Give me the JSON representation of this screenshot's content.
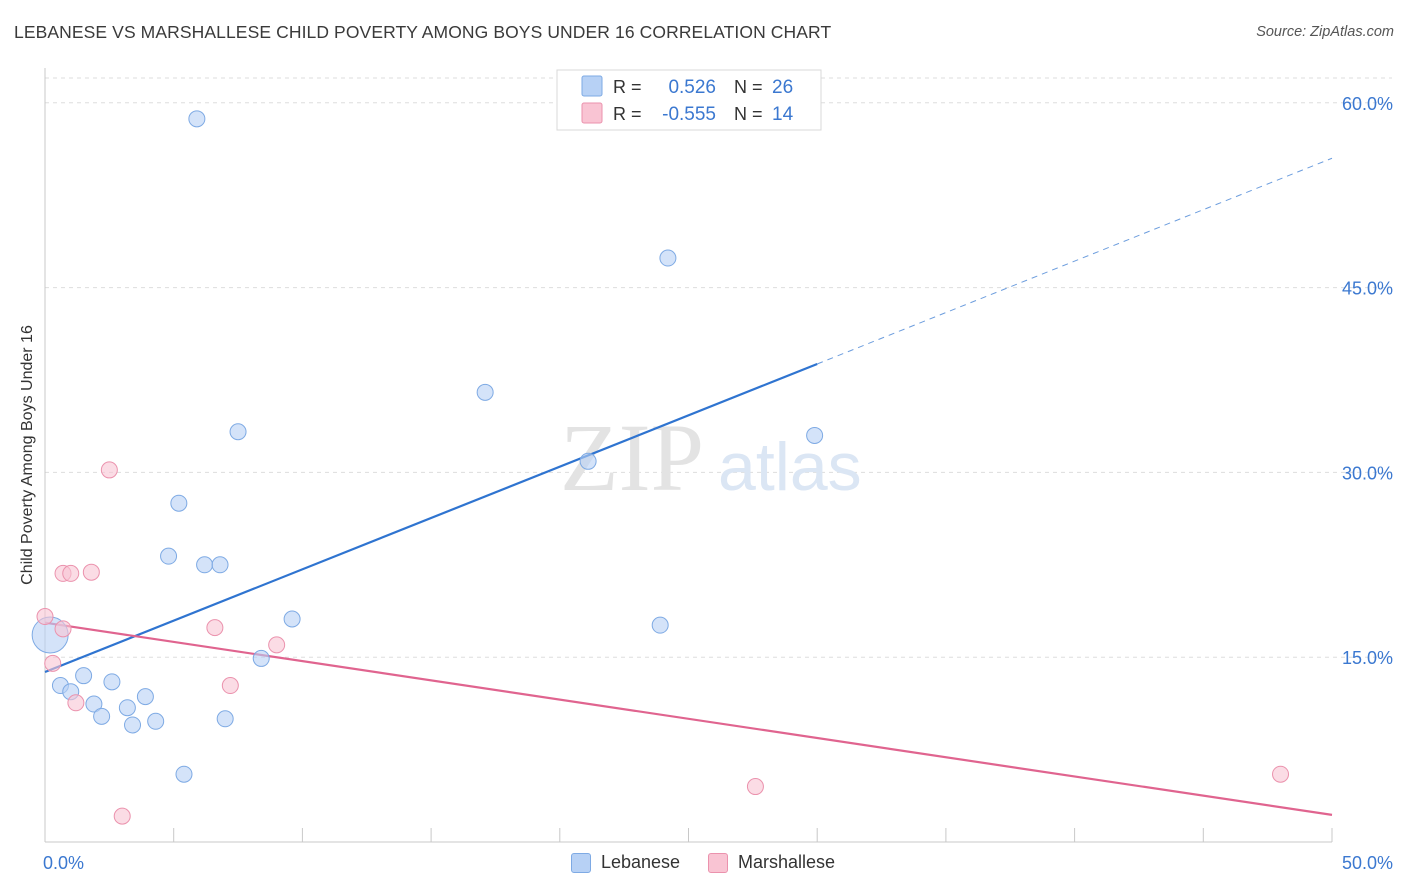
{
  "title": "LEBANESE VS MARSHALLESE CHILD POVERTY AMONG BOYS UNDER 16 CORRELATION CHART",
  "source": "Source: ZipAtlas.com",
  "watermark": {
    "zip": "ZIP",
    "atlas": "atlas"
  },
  "colors": {
    "lebanese_fill": "#b7d1f5",
    "lebanese_stroke": "#7eaae4",
    "lebanese_line": "#2f74d0",
    "marshallese_fill": "#f9c4d3",
    "marshallese_stroke": "#eb92ad",
    "marshallese_line": "#e0648f",
    "axis_text": "#3b78d0",
    "grid": "#dddddd"
  },
  "chart_data": {
    "type": "scatter",
    "title": "LEBANESE VS MARSHALLESE CHILD POVERTY AMONG BOYS UNDER 16 CORRELATION CHART",
    "ylabel": "Child Poverty Among Boys Under 16",
    "xlabel": "",
    "xlim": [
      0,
      50
    ],
    "ylim": [
      0,
      62.5
    ],
    "x_tick_labels": [
      "0.0%",
      "50.0%"
    ],
    "y_ticks": [
      15,
      30,
      45,
      60
    ],
    "y_tick_labels": [
      "15.0%",
      "30.0%",
      "45.0%",
      "60.0%"
    ],
    "legend": [
      {
        "name": "Lebanese",
        "r_label": "R =",
        "r_value": "0.526",
        "n_label": "N =",
        "n_value": "26"
      },
      {
        "name": "Marshallese",
        "r_label": "R =",
        "r_value": "-0.555",
        "n_label": "N =",
        "n_value": "14"
      }
    ],
    "series": [
      {
        "name": "Lebanese",
        "points": [
          {
            "x": 0.2,
            "y": 16.8,
            "big": true
          },
          {
            "x": 0.6,
            "y": 12.7
          },
          {
            "x": 1.0,
            "y": 12.2
          },
          {
            "x": 1.5,
            "y": 13.5
          },
          {
            "x": 1.9,
            "y": 11.2
          },
          {
            "x": 2.2,
            "y": 10.2
          },
          {
            "x": 2.6,
            "y": 13.0
          },
          {
            "x": 3.2,
            "y": 10.9
          },
          {
            "x": 3.4,
            "y": 9.5
          },
          {
            "x": 3.9,
            "y": 11.8
          },
          {
            "x": 4.3,
            "y": 9.8
          },
          {
            "x": 4.8,
            "y": 23.2
          },
          {
            "x": 5.2,
            "y": 27.5
          },
          {
            "x": 5.4,
            "y": 5.5
          },
          {
            "x": 5.9,
            "y": 58.7
          },
          {
            "x": 6.2,
            "y": 22.5
          },
          {
            "x": 6.8,
            "y": 22.5
          },
          {
            "x": 7.0,
            "y": 10.0
          },
          {
            "x": 7.5,
            "y": 33.3
          },
          {
            "x": 8.4,
            "y": 14.9
          },
          {
            "x": 9.6,
            "y": 18.1
          },
          {
            "x": 17.1,
            "y": 36.5
          },
          {
            "x": 21.1,
            "y": 30.9
          },
          {
            "x": 23.9,
            "y": 17.6
          },
          {
            "x": 24.2,
            "y": 47.4
          },
          {
            "x": 29.9,
            "y": 33.0
          }
        ],
        "trend": {
          "x0": 0,
          "y0": 13.8,
          "x1": 30,
          "y1": 38.8,
          "x_dash_end": 50,
          "y_dash_end": 55.5
        }
      },
      {
        "name": "Marshallese",
        "points": [
          {
            "x": 0.0,
            "y": 18.3
          },
          {
            "x": 0.3,
            "y": 14.5
          },
          {
            "x": 0.7,
            "y": 21.8
          },
          {
            "x": 0.7,
            "y": 17.3
          },
          {
            "x": 1.0,
            "y": 21.8
          },
          {
            "x": 1.2,
            "y": 11.3
          },
          {
            "x": 1.8,
            "y": 21.9
          },
          {
            "x": 2.5,
            "y": 30.2
          },
          {
            "x": 3.0,
            "y": 2.1
          },
          {
            "x": 6.6,
            "y": 17.4
          },
          {
            "x": 7.2,
            "y": 12.7
          },
          {
            "x": 9.0,
            "y": 16.0
          },
          {
            "x": 27.6,
            "y": 4.5
          },
          {
            "x": 48.0,
            "y": 5.5
          }
        ],
        "trend": {
          "x0": 0,
          "y0": 17.8,
          "x1": 50,
          "y1": 2.2
        }
      }
    ]
  }
}
